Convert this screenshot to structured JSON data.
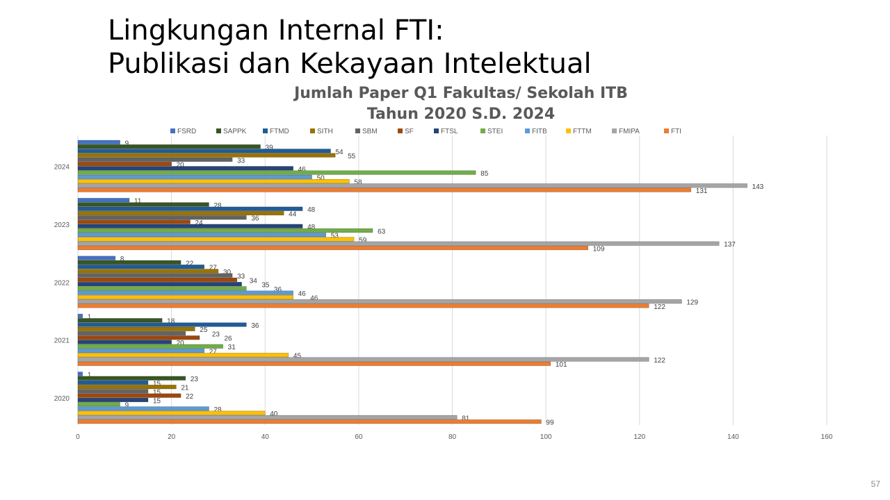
{
  "slide": {
    "title_line1": "Lingkungan Internal FTI:",
    "title_line2": "Publikasi dan Kekayaan Intelektual",
    "page_number": "57"
  },
  "chart_data": {
    "type": "bar",
    "orientation": "horizontal",
    "title_line1": "Jumlah Paper Q1 Fakultas/ Sekolah ITB",
    "title_line2": "Tahun 2020 S.D. 2024",
    "categories": [
      "2024",
      "2023",
      "2022",
      "2021",
      "2020"
    ],
    "xlim": [
      0,
      160
    ],
    "xticks": [
      0,
      20,
      40,
      60,
      80,
      100,
      120,
      140,
      160
    ],
    "grid": true,
    "legend_position": "top",
    "series": [
      {
        "name": "FSRD",
        "color": "#4472C4",
        "values": [
          9,
          11,
          8,
          1,
          1
        ]
      },
      {
        "name": "SAPPK",
        "color": "#375623",
        "values": [
          39,
          28,
          22,
          18,
          23
        ]
      },
      {
        "name": "FTMD",
        "color": "#1F5C99",
        "values": [
          54,
          48,
          27,
          36,
          15
        ]
      },
      {
        "name": "SITH",
        "color": "#997300",
        "values": [
          55,
          44,
          30,
          25,
          21
        ]
      },
      {
        "name": "SBM",
        "color": "#636363",
        "values": [
          33,
          36,
          33,
          23,
          15
        ]
      },
      {
        "name": "SF",
        "color": "#9E480E",
        "values": [
          20,
          24,
          34,
          26,
          22
        ]
      },
      {
        "name": "FTSL",
        "color": "#264478",
        "values": [
          46,
          48,
          35,
          20,
          15
        ]
      },
      {
        "name": "STEI",
        "color": "#70AD47",
        "values": [
          85,
          63,
          36,
          31,
          9
        ]
      },
      {
        "name": "FITB",
        "color": "#5B9BD5",
        "values": [
          50,
          53,
          46,
          27,
          28
        ]
      },
      {
        "name": "FTTM",
        "color": "#FFC000",
        "values": [
          58,
          59,
          46,
          45,
          40
        ]
      },
      {
        "name": "FMIPA",
        "color": "#A5A5A5",
        "values": [
          143,
          137,
          129,
          122,
          81
        ]
      },
      {
        "name": "FTI",
        "color": "#ED7D31",
        "values": [
          131,
          109,
          122,
          101,
          99
        ]
      }
    ]
  }
}
